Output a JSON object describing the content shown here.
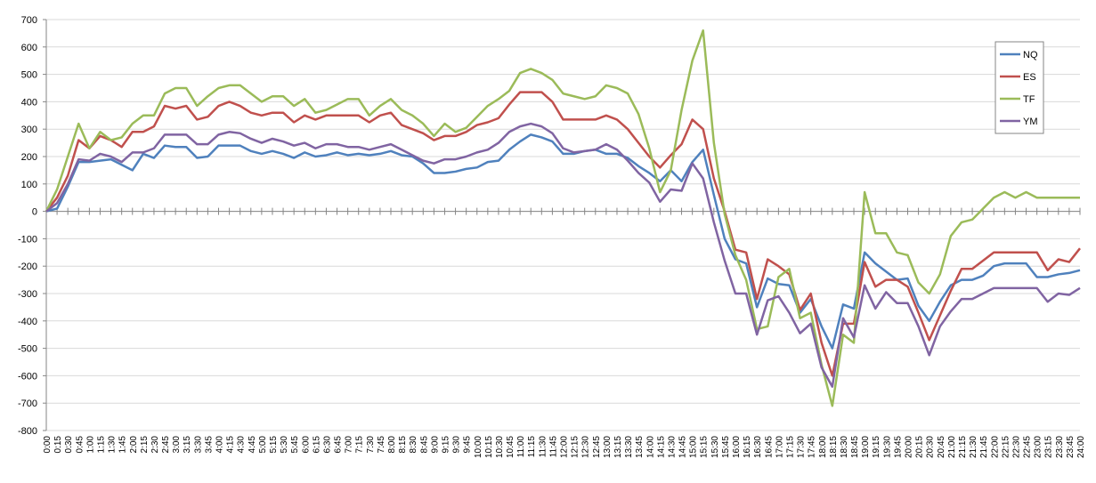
{
  "chart_data": {
    "type": "line",
    "categories": [
      "0:00",
      "0:15",
      "0:30",
      "0:45",
      "1:00",
      "1:15",
      "1:30",
      "1:45",
      "2:00",
      "2:15",
      "2:30",
      "2:45",
      "3:00",
      "3:15",
      "3:30",
      "3:45",
      "4:00",
      "4:15",
      "4:30",
      "4:45",
      "5:00",
      "5:15",
      "5:30",
      "5:45",
      "6:00",
      "6:15",
      "6:30",
      "6:45",
      "7:00",
      "7:15",
      "7:30",
      "7:45",
      "8:00",
      "8:15",
      "8:30",
      "8:45",
      "9:00",
      "9:15",
      "9:30",
      "9:45",
      "10:00",
      "10:15",
      "10:30",
      "10:45",
      "11:00",
      "11:15",
      "11:30",
      "11:45",
      "12:00",
      "12:15",
      "12:30",
      "12:45",
      "13:00",
      "13:15",
      "13:30",
      "13:45",
      "14:00",
      "14:15",
      "14:30",
      "14:45",
      "15:00",
      "15:15",
      "15:30",
      "15:45",
      "16:00",
      "16:15",
      "16:30",
      "16:45",
      "17:00",
      "17:15",
      "17:30",
      "17:45",
      "18:00",
      "18:15",
      "18:30",
      "18:45",
      "19:00",
      "19:15",
      "19:30",
      "19:45",
      "20:00",
      "20:15",
      "20:30",
      "20:45",
      "21:00",
      "21:15",
      "21:30",
      "21:45",
      "22:00",
      "22:15",
      "22:30",
      "22:45",
      "23:00",
      "23:15",
      "23:30",
      "23:45",
      "24:00"
    ],
    "series": [
      {
        "name": "NQ",
        "color": "#4f81bd",
        "values": [
          0,
          10,
          90,
          180,
          180,
          185,
          190,
          170,
          150,
          210,
          195,
          240,
          235,
          235,
          195,
          200,
          240,
          240,
          240,
          220,
          210,
          220,
          210,
          195,
          215,
          200,
          205,
          215,
          205,
          210,
          205,
          210,
          220,
          205,
          200,
          175,
          140,
          140,
          145,
          155,
          160,
          180,
          185,
          225,
          255,
          280,
          270,
          255,
          210,
          210,
          220,
          225,
          210,
          210,
          195,
          165,
          140,
          110,
          150,
          110,
          180,
          225,
          60,
          -100,
          -175,
          -190,
          -350,
          -245,
          -265,
          -270,
          -370,
          -320,
          -420,
          -500,
          -340,
          -355,
          -150,
          -190,
          -220,
          -250,
          -245,
          -345,
          -400,
          -330,
          -270,
          -250,
          -250,
          -235,
          -200,
          -190,
          -190,
          -190,
          -240,
          -240,
          -230,
          -225,
          -215
        ]
      },
      {
        "name": "ES",
        "color": "#c0504d",
        "values": [
          0,
          50,
          130,
          260,
          230,
          275,
          260,
          235,
          290,
          290,
          310,
          385,
          375,
          385,
          335,
          345,
          385,
          400,
          385,
          360,
          350,
          360,
          360,
          325,
          350,
          335,
          350,
          350,
          350,
          350,
          325,
          350,
          360,
          315,
          300,
          285,
          260,
          275,
          275,
          290,
          315,
          325,
          340,
          390,
          435,
          435,
          435,
          400,
          335,
          335,
          335,
          335,
          350,
          335,
          300,
          250,
          200,
          160,
          205,
          245,
          335,
          300,
          120,
          0,
          -140,
          -150,
          -320,
          -175,
          -200,
          -230,
          -360,
          -300,
          -480,
          -600,
          -410,
          -410,
          -185,
          -275,
          -250,
          -250,
          -275,
          -370,
          -470,
          -380,
          -290,
          -210,
          -210,
          -180,
          -150,
          -150,
          -150,
          -150,
          -150,
          -215,
          -175,
          -185,
          -135
        ]
      },
      {
        "name": "TF",
        "color": "#9bbb59",
        "values": [
          0,
          80,
          200,
          320,
          230,
          290,
          260,
          270,
          320,
          350,
          350,
          430,
          450,
          450,
          385,
          420,
          450,
          460,
          460,
          430,
          400,
          420,
          420,
          385,
          410,
          360,
          370,
          390,
          410,
          410,
          350,
          385,
          410,
          370,
          350,
          320,
          275,
          320,
          290,
          305,
          345,
          385,
          410,
          440,
          505,
          520,
          505,
          480,
          430,
          420,
          410,
          420,
          460,
          450,
          430,
          355,
          230,
          70,
          150,
          370,
          550,
          660,
          250,
          -10,
          -160,
          -250,
          -430,
          -420,
          -240,
          -210,
          -390,
          -370,
          -560,
          -710,
          -450,
          -480,
          70,
          -80,
          -80,
          -150,
          -160,
          -260,
          -300,
          -230,
          -90,
          -40,
          -30,
          10,
          50,
          70,
          50,
          70,
          50,
          50,
          50,
          50,
          50
        ]
      },
      {
        "name": "YM",
        "color": "#8064a2",
        "values": [
          0,
          30,
          100,
          190,
          185,
          210,
          200,
          180,
          215,
          215,
          230,
          280,
          280,
          280,
          245,
          245,
          280,
          290,
          285,
          265,
          250,
          265,
          255,
          240,
          250,
          230,
          245,
          245,
          235,
          235,
          225,
          235,
          245,
          225,
          205,
          185,
          175,
          190,
          190,
          200,
          215,
          225,
          250,
          290,
          310,
          320,
          310,
          285,
          230,
          215,
          220,
          225,
          245,
          225,
          185,
          140,
          105,
          35,
          80,
          75,
          175,
          120,
          -40,
          -180,
          -300,
          -300,
          -450,
          -325,
          -310,
          -370,
          -445,
          -410,
          -570,
          -640,
          -390,
          -460,
          -270,
          -355,
          -295,
          -335,
          -335,
          -420,
          -525,
          -420,
          -365,
          -320,
          -320,
          -300,
          -280,
          -280,
          -280,
          -280,
          -280,
          -330,
          -300,
          -305,
          -280
        ]
      }
    ],
    "ylim": [
      -800,
      700
    ],
    "yticks": [
      -800,
      -700,
      -600,
      -500,
      -400,
      -300,
      -200,
      -100,
      0,
      100,
      200,
      300,
      400,
      500,
      600,
      700
    ],
    "grid": true,
    "legend": "right"
  }
}
